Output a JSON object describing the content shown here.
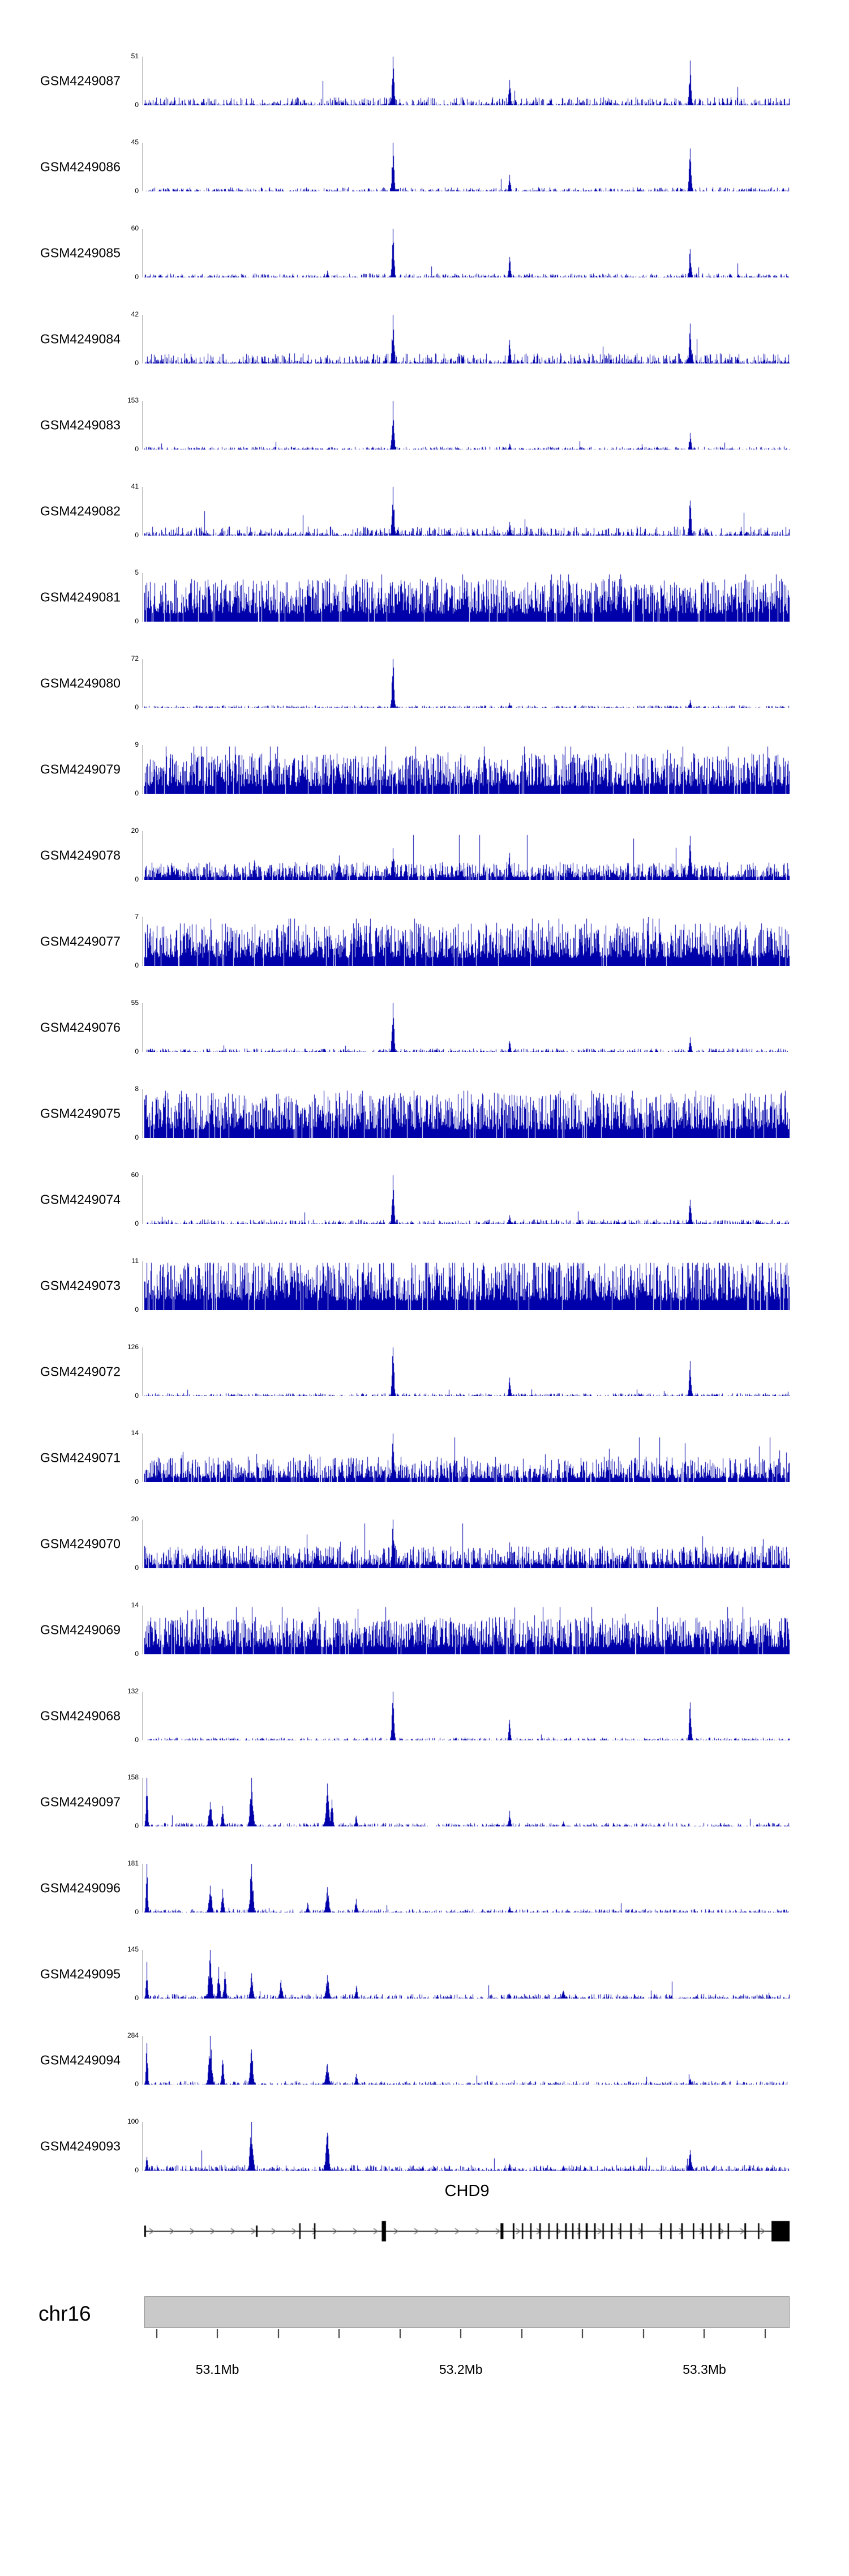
{
  "chromosome_label": "chr16",
  "colors": {
    "signal": "#0000aa",
    "text": "#000000",
    "gene": "#000000",
    "arrow": "#666666",
    "axis": "#333333",
    "ideogram_fill": "#c9c9c9",
    "ideogram_border": "#919191"
  },
  "gene_track": {
    "title": "CHD9",
    "strand_direction": "right",
    "exon_heights": {
      "small": 20,
      "normal": 28,
      "tall": 36
    },
    "exons": [
      [
        0.0,
        0.0025,
        "small"
      ],
      [
        0.173,
        0.0025,
        "small"
      ],
      [
        0.24,
        0.002,
        "normal"
      ],
      [
        0.263,
        0.002,
        "normal"
      ],
      [
        0.368,
        0.0065,
        "tall"
      ],
      [
        0.552,
        0.0045,
        "normal"
      ],
      [
        0.571,
        0.0025,
        "normal"
      ],
      [
        0.585,
        0.002,
        "normal"
      ],
      [
        0.598,
        0.0022,
        "normal"
      ],
      [
        0.612,
        0.0025,
        "normal"
      ],
      [
        0.626,
        0.002,
        "normal"
      ],
      [
        0.639,
        0.0022,
        "normal"
      ],
      [
        0.652,
        0.0028,
        "normal"
      ],
      [
        0.663,
        0.002,
        "normal"
      ],
      [
        0.673,
        0.0022,
        "normal"
      ],
      [
        0.684,
        0.0032,
        "normal"
      ],
      [
        0.697,
        0.0025,
        "normal"
      ],
      [
        0.71,
        0.002,
        "normal"
      ],
      [
        0.723,
        0.0026,
        "normal"
      ],
      [
        0.737,
        0.002,
        "normal"
      ],
      [
        0.753,
        0.0026,
        "normal"
      ],
      [
        0.77,
        0.002,
        "normal"
      ],
      [
        0.8,
        0.0026,
        "normal"
      ],
      [
        0.815,
        0.002,
        "normal"
      ],
      [
        0.832,
        0.0026,
        "normal"
      ],
      [
        0.85,
        0.002,
        "normal"
      ],
      [
        0.864,
        0.0026,
        "normal"
      ],
      [
        0.877,
        0.002,
        "normal"
      ],
      [
        0.89,
        0.0026,
        "normal"
      ],
      [
        0.904,
        0.002,
        "normal"
      ],
      [
        0.93,
        0.0026,
        "normal"
      ],
      [
        0.951,
        0.002,
        "normal"
      ],
      [
        0.972,
        0.028,
        "tall"
      ]
    ]
  },
  "ruler": {
    "start_mb": 53.07,
    "end_mb": 53.335,
    "ticks_mb": [
      53.075,
      53.1,
      53.125,
      53.15,
      53.175,
      53.2,
      53.225,
      53.25,
      53.275,
      53.3,
      53.325
    ],
    "labels": [
      {
        "mb": 53.1,
        "text": "53.1Mb"
      },
      {
        "mb": 53.2,
        "text": "53.2Mb"
      },
      {
        "mb": 53.3,
        "text": "53.3Mb"
      }
    ]
  },
  "chart_data": {
    "type": "area",
    "subtype": "genome-coverage-tracks",
    "xlim": [
      53.07,
      53.335
    ],
    "x_units": "Mb (chr16)",
    "grid": false,
    "legend": false,
    "series_color": "#0000aa",
    "peak_format": "[position_mb, height_fraction_of_ymax, width_sigma_px]",
    "tracks": [
      {
        "name": "GSM4249087",
        "ymax": 51,
        "ymin": 0,
        "style": "sparse",
        "noise": 0.07,
        "peaks": [
          [
            53.172,
            1.0,
            1.8
          ],
          [
            53.22,
            0.52,
            1.7
          ],
          [
            53.294,
            0.92,
            1.8
          ]
        ]
      },
      {
        "name": "GSM4249086",
        "ymax": 45,
        "ymin": 0,
        "style": "sparse",
        "noise": 0.035,
        "peaks": [
          [
            53.172,
            1.0,
            1.8
          ],
          [
            53.22,
            0.34,
            1.6
          ],
          [
            53.294,
            0.88,
            1.8
          ]
        ]
      },
      {
        "name": "GSM4249085",
        "ymax": 60,
        "ymin": 0,
        "style": "sparse",
        "noise": 0.035,
        "peaks": [
          [
            53.145,
            0.14,
            1.6
          ],
          [
            53.172,
            1.0,
            1.8
          ],
          [
            53.22,
            0.42,
            1.6
          ],
          [
            53.294,
            0.58,
            1.8
          ]
        ]
      },
      {
        "name": "GSM4249084",
        "ymax": 42,
        "ymin": 0,
        "style": "sparse",
        "noise": 0.09,
        "peaks": [
          [
            53.172,
            1.0,
            1.8
          ],
          [
            53.22,
            0.48,
            1.6
          ],
          [
            53.294,
            0.82,
            1.8
          ]
        ]
      },
      {
        "name": "GSM4249083",
        "ymax": 153,
        "ymin": 0,
        "style": "sparse",
        "noise": 0.025,
        "peaks": [
          [
            53.172,
            1.0,
            1.8
          ],
          [
            53.22,
            0.12,
            1.5
          ],
          [
            53.294,
            0.34,
            1.6
          ]
        ]
      },
      {
        "name": "GSM4249082",
        "ymax": 41,
        "ymin": 0,
        "style": "sparse",
        "noise": 0.08,
        "peaks": [
          [
            53.172,
            1.0,
            1.8
          ],
          [
            53.22,
            0.28,
            1.6
          ],
          [
            53.294,
            0.72,
            1.8
          ]
        ]
      },
      {
        "name": "GSM4249081",
        "ymax": 5,
        "ymin": 0,
        "style": "dense",
        "noise": 0.55,
        "peaks": []
      },
      {
        "name": "GSM4249080",
        "ymax": 72,
        "ymin": 0,
        "style": "sparse",
        "noise": 0.02,
        "peaks": [
          [
            53.172,
            1.0,
            1.8
          ],
          [
            53.22,
            0.1,
            1.5
          ],
          [
            53.294,
            0.16,
            1.5
          ]
        ]
      },
      {
        "name": "GSM4249079",
        "ymax": 9,
        "ymin": 0,
        "style": "dense",
        "noise": 0.52,
        "peaks": []
      },
      {
        "name": "GSM4249078",
        "ymax": 20,
        "ymin": 0,
        "style": "semidense",
        "noise": 0.22,
        "peaks": [
          [
            53.115,
            0.4,
            2.0
          ],
          [
            53.15,
            0.5,
            2.0
          ],
          [
            53.172,
            0.65,
            2.0
          ],
          [
            53.22,
            0.55,
            2.0
          ],
          [
            53.294,
            0.9,
            2.0
          ]
        ]
      },
      {
        "name": "GSM4249077",
        "ymax": 7,
        "ymin": 0,
        "style": "dense",
        "noise": 0.55,
        "peaks": [
          [
            53.277,
            1.0,
            1.5
          ]
        ]
      },
      {
        "name": "GSM4249076",
        "ymax": 55,
        "ymin": 0,
        "style": "sparse",
        "noise": 0.03,
        "peaks": [
          [
            53.172,
            1.0,
            1.8
          ],
          [
            53.22,
            0.22,
            1.6
          ],
          [
            53.294,
            0.3,
            1.6
          ]
        ]
      },
      {
        "name": "GSM4249075",
        "ymax": 8,
        "ymin": 0,
        "style": "dense",
        "noise": 0.58,
        "peaks": []
      },
      {
        "name": "GSM4249074",
        "ymax": 60,
        "ymin": 0,
        "style": "sparse",
        "noise": 0.04,
        "peaks": [
          [
            53.172,
            1.0,
            1.8
          ],
          [
            53.22,
            0.18,
            1.6
          ],
          [
            53.294,
            0.5,
            1.8
          ]
        ]
      },
      {
        "name": "GSM4249073",
        "ymax": 11,
        "ymin": 0,
        "style": "dense",
        "noise": 0.65,
        "peaks": []
      },
      {
        "name": "GSM4249072",
        "ymax": 126,
        "ymin": 0,
        "style": "sparse",
        "noise": 0.025,
        "peaks": [
          [
            53.172,
            1.0,
            1.8
          ],
          [
            53.22,
            0.38,
            1.6
          ],
          [
            53.294,
            0.72,
            1.8
          ]
        ]
      },
      {
        "name": "GSM4249071",
        "ymax": 14,
        "ymin": 0,
        "style": "semidense",
        "noise": 0.32,
        "peaks": [
          [
            53.172,
            1.0,
            2.0
          ]
        ]
      },
      {
        "name": "GSM4249070",
        "ymax": 20,
        "ymin": 0,
        "style": "semidense",
        "noise": 0.28,
        "peaks": [
          [
            53.172,
            1.0,
            2.0
          ],
          [
            53.294,
            0.35,
            1.8
          ]
        ]
      },
      {
        "name": "GSM4249069",
        "ymax": 14,
        "ymin": 0,
        "style": "dense",
        "noise": 0.48,
        "peaks": []
      },
      {
        "name": "GSM4249068",
        "ymax": 132,
        "ymin": 0,
        "style": "sparse",
        "noise": 0.025,
        "peaks": [
          [
            53.172,
            1.0,
            1.8
          ],
          [
            53.22,
            0.42,
            1.6
          ],
          [
            53.294,
            0.78,
            1.8
          ]
        ]
      },
      {
        "name": "GSM4249097",
        "ymax": 158,
        "ymin": 0,
        "style": "sparse",
        "noise": 0.03,
        "peaks": [
          [
            53.071,
            1.0,
            1.5
          ],
          [
            53.097,
            0.5,
            2.4
          ],
          [
            53.102,
            0.42,
            1.8
          ],
          [
            53.114,
            1.0,
            2.4
          ],
          [
            53.145,
            0.88,
            2.6
          ],
          [
            53.147,
            0.55,
            1.8
          ],
          [
            53.157,
            0.22,
            1.8
          ],
          [
            53.22,
            0.32,
            1.8
          ],
          [
            53.242,
            0.1,
            1.6
          ]
        ]
      },
      {
        "name": "GSM4249096",
        "ymax": 181,
        "ymin": 0,
        "style": "sparse",
        "noise": 0.03,
        "peaks": [
          [
            53.071,
            1.0,
            1.5
          ],
          [
            53.097,
            0.55,
            2.4
          ],
          [
            53.102,
            0.48,
            1.8
          ],
          [
            53.114,
            1.0,
            2.4
          ],
          [
            53.137,
            0.2,
            1.8
          ],
          [
            53.145,
            0.52,
            2.6
          ],
          [
            53.157,
            0.28,
            1.8
          ],
          [
            53.22,
            0.12,
            1.6
          ]
        ]
      },
      {
        "name": "GSM4249095",
        "ymax": 145,
        "ymin": 0,
        "style": "sparse",
        "noise": 0.04,
        "peaks": [
          [
            53.071,
            0.75,
            1.5
          ],
          [
            53.097,
            1.0,
            2.6
          ],
          [
            53.1005,
            0.65,
            1.8
          ],
          [
            53.103,
            0.55,
            1.8
          ],
          [
            53.114,
            0.52,
            2.2
          ],
          [
            53.126,
            0.38,
            2.2
          ],
          [
            53.145,
            0.48,
            2.6
          ],
          [
            53.157,
            0.26,
            1.8
          ],
          [
            53.22,
            0.1,
            1.6
          ],
          [
            53.242,
            0.16,
            2.2
          ]
        ]
      },
      {
        "name": "GSM4249094",
        "ymax": 284,
        "ymin": 0,
        "style": "sparse",
        "noise": 0.03,
        "peaks": [
          [
            53.071,
            0.85,
            1.5
          ],
          [
            53.097,
            1.0,
            2.6
          ],
          [
            53.102,
            0.5,
            1.8
          ],
          [
            53.114,
            0.72,
            2.4
          ],
          [
            53.145,
            0.42,
            2.6
          ],
          [
            53.157,
            0.22,
            1.8
          ],
          [
            53.294,
            0.12,
            1.8
          ]
        ]
      },
      {
        "name": "GSM4249093",
        "ymax": 100,
        "ymin": 0,
        "style": "sparse",
        "noise": 0.05,
        "peaks": [
          [
            53.071,
            0.28,
            1.5
          ],
          [
            53.114,
            1.0,
            2.6
          ],
          [
            53.145,
            0.78,
            2.6
          ],
          [
            53.22,
            0.14,
            1.6
          ],
          [
            53.242,
            0.1,
            1.6
          ],
          [
            53.294,
            0.42,
            2.2
          ]
        ]
      }
    ]
  }
}
